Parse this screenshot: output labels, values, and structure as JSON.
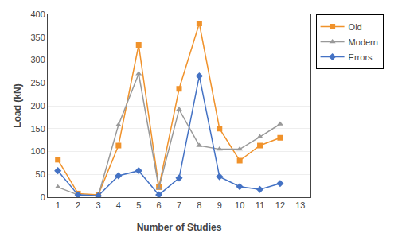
{
  "chart_data": {
    "type": "line",
    "x": [
      1,
      2,
      3,
      4,
      5,
      6,
      7,
      8,
      9,
      10,
      11,
      12
    ],
    "series": [
      {
        "name": "Old",
        "color": "#F0922B",
        "marker": "square",
        "values": [
          82,
          8,
          5,
          113,
          333,
          22,
          237,
          380,
          150,
          80,
          113,
          130
        ]
      },
      {
        "name": "Modern",
        "color": "#999999",
        "marker": "triangle-up",
        "values": [
          22,
          5,
          3,
          158,
          270,
          20,
          192,
          113,
          105,
          105,
          132,
          160
        ]
      },
      {
        "name": "Errors",
        "color": "#4472C4",
        "marker": "diamond",
        "values": [
          58,
          5,
          3,
          47,
          58,
          5,
          42,
          265,
          45,
          23,
          17,
          30
        ]
      }
    ],
    "xlabel": "Number of Studies",
    "ylabel": "Load (kN)",
    "xlim": [
      0.5,
      13.5
    ],
    "ylim": [
      0,
      400
    ],
    "xticks": [
      1,
      2,
      3,
      4,
      5,
      6,
      7,
      8,
      9,
      10,
      11,
      12,
      13
    ],
    "yticks": [
      0,
      50,
      100,
      150,
      200,
      250,
      300,
      350,
      400
    ],
    "grid": true,
    "legend": "right"
  }
}
